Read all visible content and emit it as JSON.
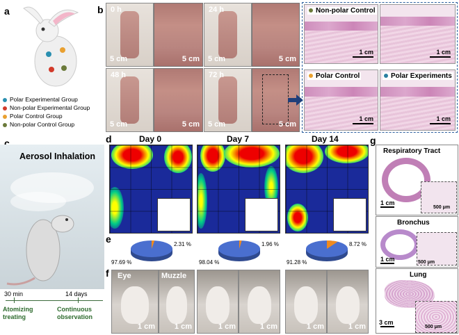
{
  "panels": {
    "a": "a",
    "b": "b",
    "c": "c",
    "d": "d",
    "e": "e",
    "f": "f",
    "g": "g"
  },
  "legend_a": [
    {
      "label": "Polar Experimental Group",
      "color": "#2a8fb0"
    },
    {
      "label": "Non-polar Experimental Group",
      "color": "#d23a2a"
    },
    {
      "label": "Polar Control Group",
      "color": "#e9a030"
    },
    {
      "label": "Non-polar Control Group",
      "color": "#6b7a3a"
    }
  ],
  "panel_b": {
    "times": [
      "0 h",
      "24 h",
      "48 h",
      "72 h"
    ],
    "scale": "5 cm",
    "histology": [
      {
        "title": "Non-polar Control",
        "color": "#6b7a3a",
        "scale": "1 cm"
      },
      {
        "title": "Polar Control",
        "color": "#e9a030",
        "scale": "1 cm"
      },
      {
        "title": "Polar Experiments",
        "color": "#2a7fa0",
        "scale": "1 cm"
      }
    ],
    "scale_1cm": "1 cm"
  },
  "panel_c": {
    "title": "Aerosol Inhalation",
    "timeline": [
      {
        "time": "30 min",
        "label": "Atomizing treating"
      },
      {
        "time": "14 days",
        "label": "Continuous observation"
      }
    ]
  },
  "panel_d": {
    "days": [
      "Day 0",
      "Day 7",
      "Day 14"
    ]
  },
  "chart_data": {
    "type": "pie",
    "charts": [
      {
        "title": "Day 0",
        "slices": [
          {
            "value": 97.69,
            "label": "97.69 %"
          },
          {
            "value": 2.31,
            "label": "2.31 %"
          }
        ]
      },
      {
        "title": "Day 7",
        "slices": [
          {
            "value": 98.04,
            "label": "98.04 %"
          },
          {
            "value": 1.96,
            "label": "1.96 %"
          }
        ]
      },
      {
        "title": "Day 14",
        "slices": [
          {
            "value": 91.28,
            "label": "91.28 %"
          },
          {
            "value": 8.72,
            "label": "8.72 %"
          }
        ]
      }
    ]
  },
  "panel_f": {
    "eye": "Eye",
    "muzzle": "Muzzle",
    "scale": "1 cm"
  },
  "panel_g": {
    "boxes": [
      {
        "title": "Respiratory Tract",
        "scale": "1 cm",
        "inset_scale": "500 μm"
      },
      {
        "title": "Bronchus",
        "scale": "1 cm",
        "inset_scale": "500 μm"
      },
      {
        "title": "Lung",
        "scale": "3 cm",
        "inset_scale": "500 μm"
      }
    ]
  }
}
